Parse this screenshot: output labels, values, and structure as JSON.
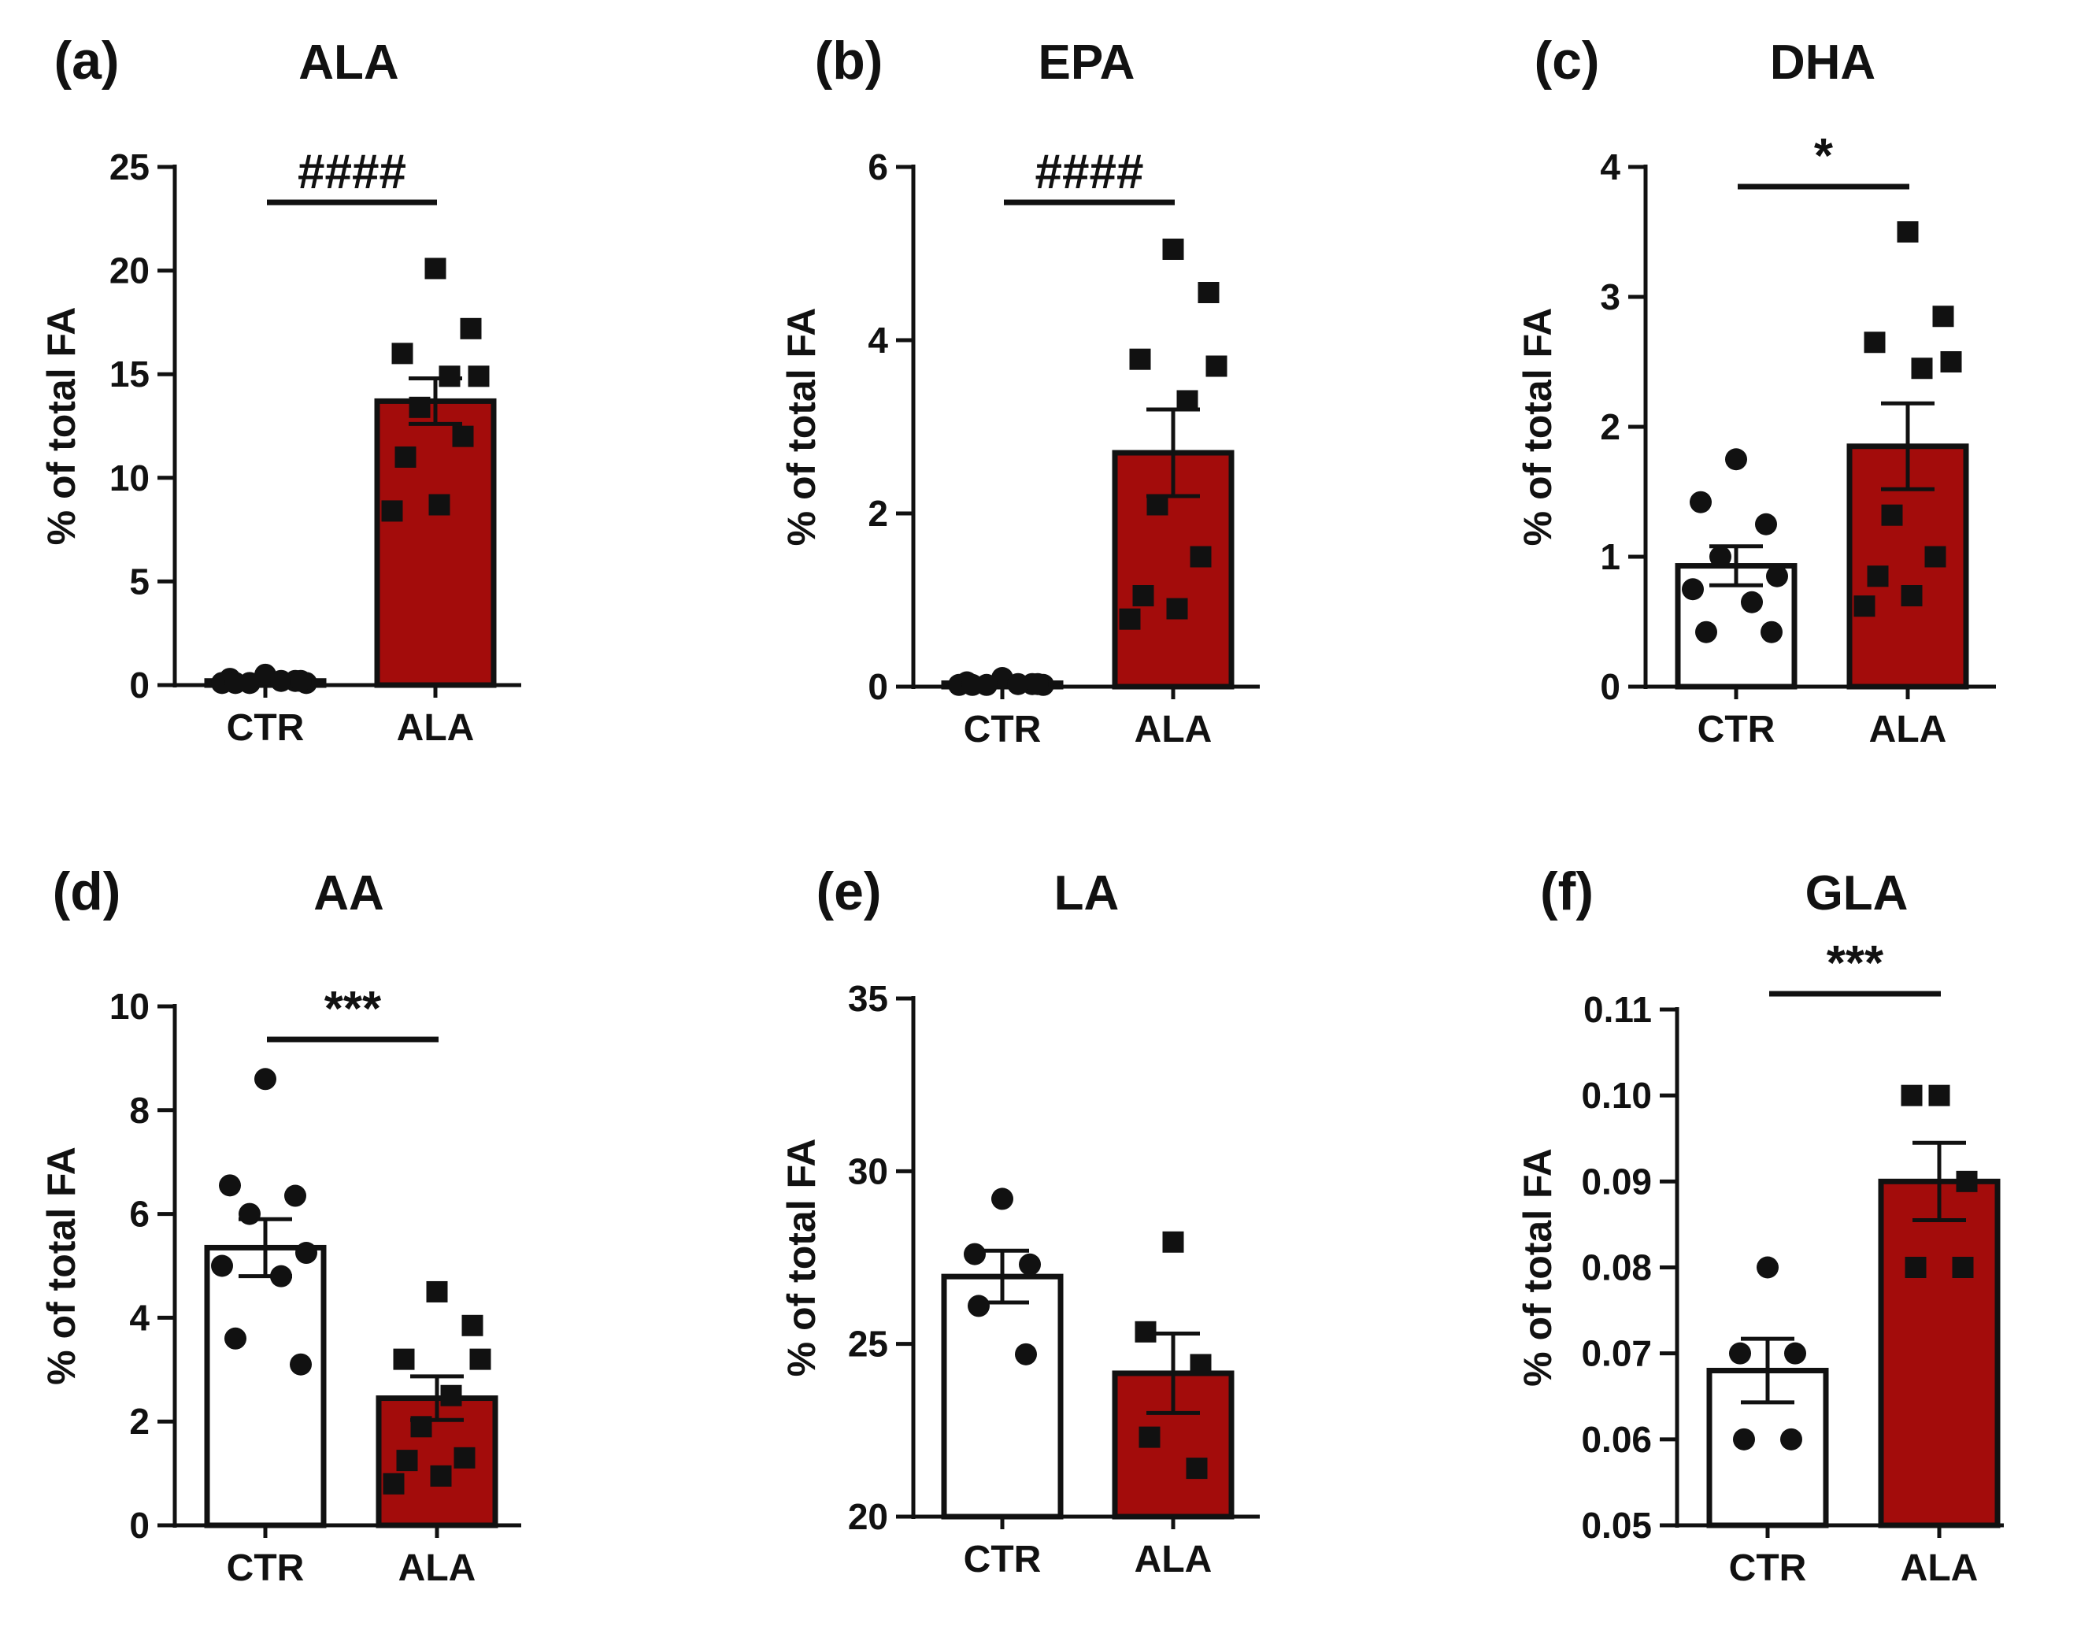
{
  "chart_data": [
    {
      "panel": "(a)",
      "title": "ALA",
      "type": "bar",
      "categories": [
        "CTR",
        "ALA"
      ],
      "ylabel": "% of total FA",
      "ylim": [
        0,
        25
      ],
      "yticks": [
        "0",
        "5",
        "10",
        "15",
        "20",
        "25"
      ],
      "significance": "####",
      "bars": [
        {
          "name": "CTR",
          "mean": 0.2,
          "sem": 0.05,
          "color": "#888888",
          "marker": "circle",
          "points": [
            0.5,
            0.3,
            0.2,
            0.1,
            0.1,
            0.1,
            0.2,
            0.1,
            0.2
          ]
        },
        {
          "name": "ALA",
          "mean": 13.7,
          "sem": 1.1,
          "color": "#a30c0b",
          "marker": "square",
          "points": [
            20.1,
            17.2,
            16.0,
            14.9,
            14.9,
            13.4,
            12.0,
            11.0,
            8.7,
            8.4
          ]
        }
      ]
    },
    {
      "panel": "(b)",
      "title": "EPA",
      "type": "bar",
      "categories": [
        "CTR",
        "ALA"
      ],
      "ylabel": "% of total FA",
      "ylim": [
        0,
        6
      ],
      "yticks": [
        "0",
        "2",
        "4",
        "6"
      ],
      "significance": "####",
      "bars": [
        {
          "name": "CTR",
          "mean": 0.04,
          "sem": 0.01,
          "color": "#888888",
          "marker": "circle",
          "points": [
            0.1,
            0.05,
            0.03,
            0.02,
            0.02,
            0.02,
            0.03,
            0.02,
            0.03
          ]
        },
        {
          "name": "ALA",
          "mean": 2.7,
          "sem": 0.5,
          "color": "#a30c0b",
          "marker": "square",
          "points": [
            5.05,
            4.55,
            3.78,
            3.7,
            3.3,
            2.1,
            1.5,
            1.05,
            0.9,
            0.78
          ]
        }
      ]
    },
    {
      "panel": "(c)",
      "title": "DHA",
      "type": "bar",
      "categories": [
        "CTR",
        "ALA"
      ],
      "ylabel": "% of total FA",
      "ylim": [
        0,
        4
      ],
      "yticks": [
        "0",
        "1",
        "2",
        "3",
        "4"
      ],
      "significance": "*",
      "bars": [
        {
          "name": "CTR",
          "mean": 0.93,
          "sem": 0.15,
          "color": "#ffffff",
          "marker": "circle",
          "points": [
            1.75,
            1.42,
            1.25,
            1.0,
            0.85,
            0.75,
            0.65,
            0.42,
            0.42
          ]
        },
        {
          "name": "ALA",
          "mean": 1.85,
          "sem": 0.33,
          "color": "#a30c0b",
          "marker": "square",
          "points": [
            3.5,
            2.85,
            2.65,
            2.5,
            2.45,
            1.32,
            1.0,
            0.85,
            0.7,
            0.62
          ]
        }
      ]
    },
    {
      "panel": "(d)",
      "title": "AA",
      "type": "bar",
      "categories": [
        "CTR",
        "ALA"
      ],
      "ylabel": "% of total FA",
      "ylim": [
        0,
        10
      ],
      "yticks": [
        "0",
        "2",
        "4",
        "6",
        "8",
        "10"
      ],
      "significance": "***",
      "bars": [
        {
          "name": "CTR",
          "mean": 5.35,
          "sem": 0.55,
          "color": "#ffffff",
          "marker": "circle",
          "points": [
            8.6,
            6.55,
            6.35,
            6.0,
            5.25,
            5.0,
            4.8,
            3.6,
            3.1
          ]
        },
        {
          "name": "ALA",
          "mean": 2.45,
          "sem": 0.42,
          "color": "#a30c0b",
          "marker": "square",
          "points": [
            4.5,
            3.85,
            3.2,
            3.2,
            2.5,
            1.9,
            1.3,
            1.25,
            0.95,
            0.8
          ]
        }
      ]
    },
    {
      "panel": "(e)",
      "title": "LA",
      "type": "bar",
      "categories": [
        "CTR",
        "ALA"
      ],
      "ylabel": "% of total FA",
      "ylim": [
        20,
        35
      ],
      "yticks": [
        "20",
        "25",
        "30",
        "35"
      ],
      "significance": "",
      "bars": [
        {
          "name": "CTR",
          "mean": 26.95,
          "sem": 0.75,
          "color": "#ffffff",
          "marker": "circle",
          "points": [
            29.2,
            27.6,
            27.3,
            26.1,
            24.7
          ]
        },
        {
          "name": "ALA",
          "mean": 24.15,
          "sem": 1.15,
          "color": "#a30c0b",
          "marker": "square",
          "points": [
            27.95,
            25.35,
            24.4,
            22.3,
            21.4
          ]
        }
      ]
    },
    {
      "panel": "(f)",
      "title": "GLA",
      "type": "bar",
      "categories": [
        "CTR",
        "ALA"
      ],
      "ylabel": "% of total FA",
      "ylim": [
        0.05,
        0.11
      ],
      "yticks": [
        "0.05",
        "0.06",
        "0.07",
        "0.08",
        "0.09",
        "0.10",
        "0.11"
      ],
      "significance": "***",
      "bars": [
        {
          "name": "CTR",
          "mean": 0.068,
          "sem": 0.0037,
          "color": "#ffffff",
          "marker": "circle",
          "points": [
            0.08,
            0.07,
            0.07,
            0.06,
            0.06
          ]
        },
        {
          "name": "ALA",
          "mean": 0.09,
          "sem": 0.0045,
          "color": "#a30c0b",
          "marker": "square",
          "points": [
            0.1,
            0.1,
            0.09,
            0.08,
            0.08
          ]
        }
      ]
    }
  ]
}
